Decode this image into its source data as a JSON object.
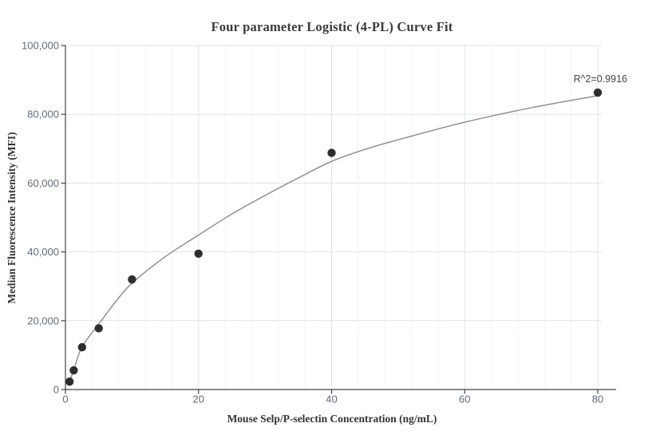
{
  "chart_data": {
    "type": "scatter",
    "title": "Four parameter Logistic (4-PL) Curve Fit",
    "xlabel": "Mouse Selp/P-selectin Concentration (ng/mL)",
    "ylabel": "Median Fluorescence Intensity (MFI)",
    "annotation": {
      "text": "R^2=0.9916",
      "r_squared": 0.9916
    },
    "xlim": [
      0,
      80.6
    ],
    "ylim": [
      0,
      100000
    ],
    "grid": true,
    "legend": false,
    "x_minor_grid_step": 4,
    "x_ticks": [
      {
        "value": 0,
        "label": "0"
      },
      {
        "value": 20,
        "label": "20"
      },
      {
        "value": 40,
        "label": "40"
      },
      {
        "value": 60,
        "label": "60"
      },
      {
        "value": 80,
        "label": "80"
      }
    ],
    "y_ticks": [
      {
        "value": 0,
        "label": "0"
      },
      {
        "value": 20000,
        "label": "20,000"
      },
      {
        "value": 40000,
        "label": "40,000"
      },
      {
        "value": 60000,
        "label": "60,000"
      },
      {
        "value": 80000,
        "label": "80,000"
      },
      {
        "value": 100000,
        "label": "100,000"
      }
    ],
    "series": [
      {
        "name": "standard-points",
        "type": "scatter",
        "points": [
          [
            0.625,
            2300
          ],
          [
            1.25,
            5600
          ],
          [
            2.5,
            12300
          ],
          [
            5,
            17800
          ],
          [
            10,
            32000
          ],
          [
            20,
            39500
          ],
          [
            40,
            68800
          ],
          [
            80,
            86300
          ]
        ]
      },
      {
        "name": "4pl-fitted-curve",
        "type": "line",
        "points": [
          [
            0.625,
            2300
          ],
          [
            1.25,
            5700
          ],
          [
            2.5,
            12400
          ],
          [
            5,
            19000
          ],
          [
            7.5,
            25400
          ],
          [
            10,
            30900
          ],
          [
            15,
            38600
          ],
          [
            20,
            44900
          ],
          [
            25,
            51000
          ],
          [
            30,
            56400
          ],
          [
            35,
            61500
          ],
          [
            40,
            66300
          ],
          [
            45,
            69800
          ],
          [
            50,
            72600
          ],
          [
            60,
            77700
          ],
          [
            70,
            81900
          ],
          [
            80,
            85400
          ]
        ]
      }
    ],
    "colors": {
      "background": "#ffffff",
      "point": "#2e2e2e",
      "curve": "#8a8a8a",
      "axis": "#444444",
      "tick_label": "#5f6b7a",
      "grid_major": "#dde3ef",
      "grid_minor": "#f1f3f9",
      "title": "#3a3a3a",
      "axis_title": "#333333",
      "annotation": "#444444"
    }
  }
}
